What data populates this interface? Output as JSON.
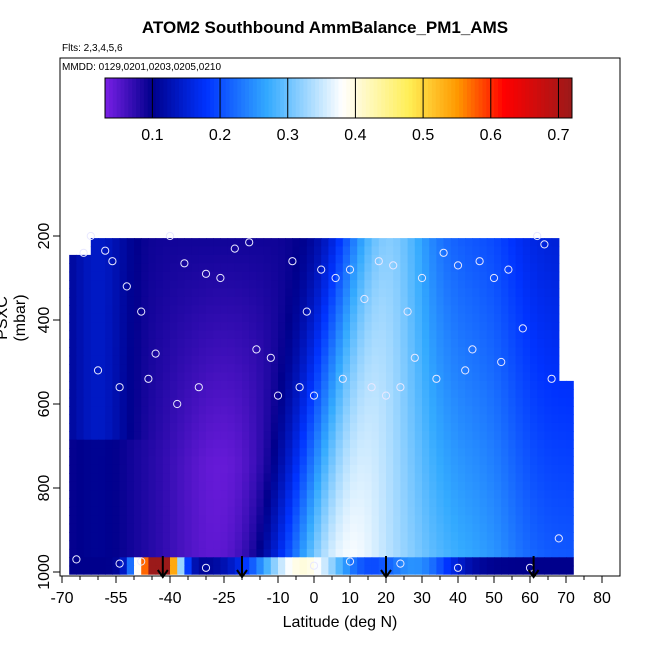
{
  "chart_data": {
    "type": "heatmap",
    "title": "ATOM2 Southbound AmmBalance_PM1_AMS",
    "subtitle_flights": "Flts: 2,3,4,5,6",
    "subtitle_dates": "MMDD: 0129,0201,0203,0205,0210",
    "xlabel": "Latitude (deg N)",
    "ylabel": "PSXC (mbar)",
    "xlim": [
      -70,
      80
    ],
    "ylim": [
      1000,
      0
    ],
    "xticks": [
      "-70",
      "-55",
      "-40",
      "-25",
      "-10",
      "0",
      "10",
      "20",
      "30",
      "40",
      "50",
      "60",
      "70",
      "80"
    ],
    "xtick_values": [
      -70,
      -55,
      -40,
      -25,
      -10,
      0,
      10,
      20,
      30,
      40,
      50,
      60,
      70,
      80
    ],
    "yticks": [
      "200",
      "400",
      "600",
      "800",
      "1000"
    ],
    "ytick_values": [
      200,
      400,
      600,
      800,
      1000
    ],
    "colorbar": {
      "range": [
        0.03,
        0.72
      ],
      "ticks": [
        "0.1",
        "0.2",
        "0.3",
        "0.4",
        "0.5",
        "0.6",
        "0.7"
      ],
      "tick_values": [
        0.1,
        0.2,
        0.3,
        0.4,
        0.5,
        0.6,
        0.7
      ],
      "colors": [
        "#7a1fe6",
        "#00008c",
        "#0033ff",
        "#33aaff",
        "#ffffff",
        "#ffee55",
        "#ff9900",
        "#ff0000",
        "#9b1a1a"
      ]
    },
    "arrows_latitude": [
      -42,
      -20,
      20,
      61
    ],
    "grid": false,
    "legend": "none"
  }
}
